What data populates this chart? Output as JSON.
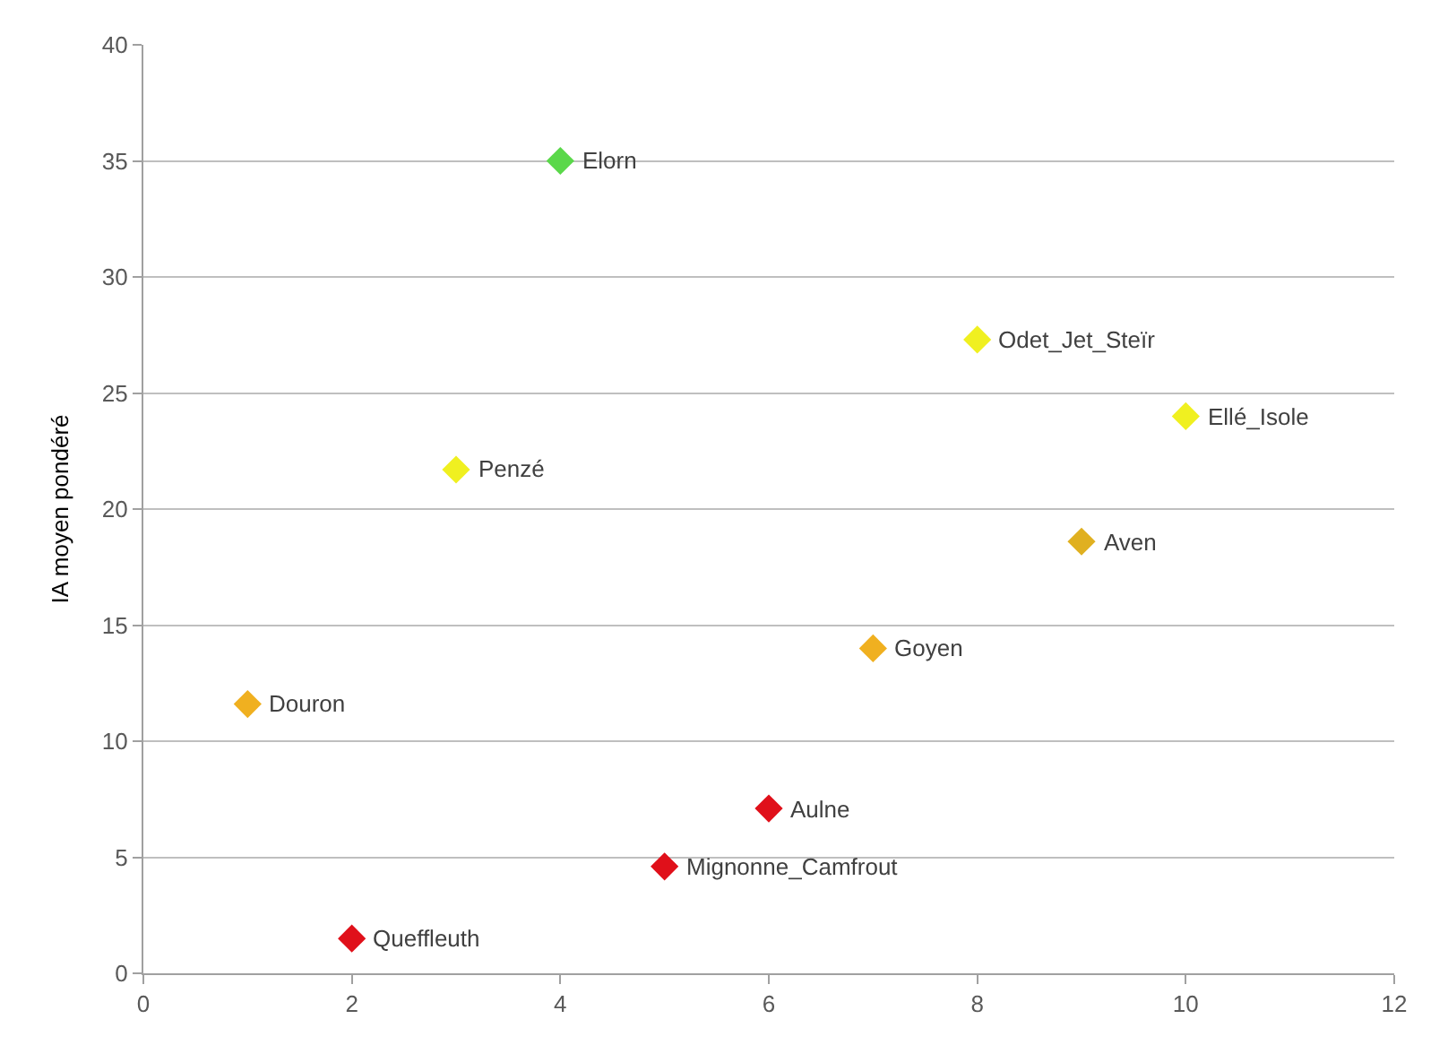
{
  "chart_data": {
    "type": "scatter",
    "ylabel": "IA moyen pondéré",
    "x": [
      4,
      8,
      10,
      3,
      9,
      7,
      1,
      6,
      5,
      2
    ],
    "values": [
      35,
      27.3,
      24,
      21.7,
      18.6,
      14,
      11.6,
      7.1,
      4.6,
      1.5
    ],
    "colors": [
      "#5ad84a",
      "#f0f020",
      "#f0f020",
      "#f0f020",
      "#e0b020",
      "#f0b020",
      "#f0b020",
      "#e0101a",
      "#e0101a",
      "#e0101a"
    ],
    "annotations": [
      {
        "text": "Elorn",
        "x": 4,
        "y": 35
      },
      {
        "text": "Odet_Jet_Steïr",
        "x": 8,
        "y": 27.3
      },
      {
        "text": "Ellé_Isole",
        "x": 10,
        "y": 24
      },
      {
        "text": "Penzé",
        "x": 3,
        "y": 21.7
      },
      {
        "text": "Aven",
        "x": 9,
        "y": 18.6
      },
      {
        "text": "Goyen",
        "x": 7,
        "y": 14
      },
      {
        "text": "Douron",
        "x": 1,
        "y": 11.6
      },
      {
        "text": "Aulne",
        "x": 6,
        "y": 7.1
      },
      {
        "text": "Mignonne_Camfrout",
        "x": 5,
        "y": 4.6
      },
      {
        "text": "Queffleuth",
        "x": 2,
        "y": 1.5
      }
    ],
    "xlim": [
      0,
      12
    ],
    "xticks": [
      0,
      2,
      4,
      6,
      8,
      10,
      12
    ],
    "ylim": [
      0,
      40
    ],
    "yticks": [
      0,
      5,
      10,
      15,
      20,
      25,
      30,
      35,
      40
    ],
    "grid": "y",
    "marker": "diamond",
    "legend": false
  }
}
